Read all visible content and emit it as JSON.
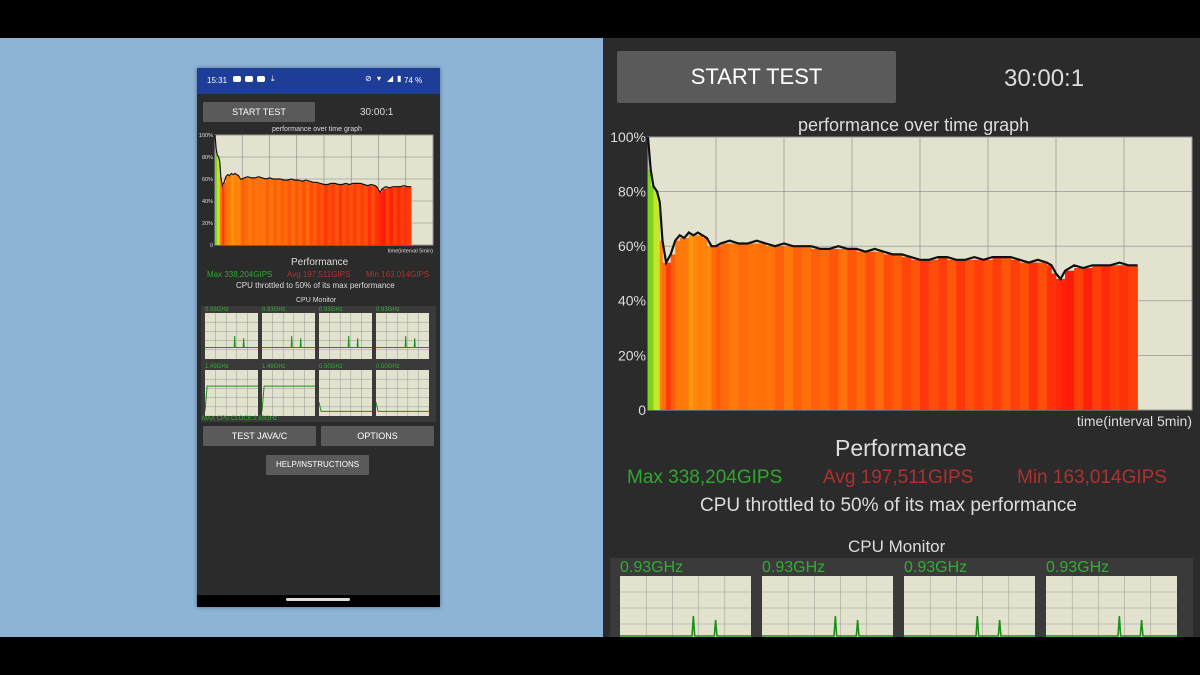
{
  "status_bar": {
    "time": "15:31",
    "battery": "74 %"
  },
  "controls": {
    "start_test": "START TEST",
    "timer": "30:00:1",
    "test_java": "TEST JAVA/C",
    "options": "OPTIONS",
    "help": "HELP/INSTRUCTIONS"
  },
  "performance": {
    "heading": "Performance",
    "max": "Max 338,204GIPS",
    "avg": "Avg 197,511GIPS",
    "min": "Min 163,014GIPS",
    "throttle": "CPU throttled to 50% of its max performance"
  },
  "cpu_monitor": {
    "title": "CPU Monitor",
    "cores": [
      "0.93GHz",
      "0.93GHz",
      "0.93GHz",
      "0.93GHz",
      "1.49GHz",
      "1.49GHz",
      "0.50GHz",
      "0.50GHz"
    ],
    "max_clock": "MAX CPU CLOCK:2.85GHz"
  },
  "colors": {
    "max": "#2ea82e",
    "avg": "#b03030",
    "min": "#b03030",
    "plot_bg": "#e3e2cf",
    "accent_bar": "#1e3d96"
  },
  "chart_data": {
    "type": "area",
    "title": "performance over time graph",
    "xlabel": "time(interval 5min)",
    "ylabel": "",
    "y_ticks": [
      "100%",
      "80%",
      "60%",
      "40%",
      "20%",
      "0"
    ],
    "ylim": [
      0,
      100
    ],
    "xlim": [
      0,
      60
    ],
    "grid": true,
    "x": [
      0,
      0.3,
      0.6,
      1,
      1.3,
      1.6,
      2,
      2.5,
      3,
      3.5,
      4,
      4.5,
      5,
      5.5,
      6,
      6.5,
      7,
      7.5,
      8,
      9,
      10,
      11,
      12,
      13,
      14,
      15,
      16,
      17,
      18,
      19,
      20,
      21,
      22,
      23,
      24,
      25,
      26,
      27,
      28,
      29,
      30,
      31,
      32,
      33,
      34,
      35,
      36,
      37,
      38,
      39,
      40,
      41,
      42,
      43,
      44,
      44.5,
      45,
      45.5,
      46,
      47,
      48,
      49,
      50,
      51,
      52,
      53,
      54,
      55,
      56,
      57,
      58,
      59,
      60
    ],
    "values": [
      100,
      88,
      82,
      80,
      76,
      62,
      54,
      57,
      62,
      64,
      63,
      65,
      64,
      65,
      64,
      63,
      60,
      60,
      61,
      62,
      61,
      61,
      62,
      61,
      60,
      61,
      60,
      60,
      60,
      59,
      59,
      60,
      59,
      59,
      58,
      59,
      58,
      57,
      57,
      56,
      55,
      55,
      56,
      56,
      55,
      55,
      56,
      55,
      56,
      56,
      56,
      55,
      54,
      55,
      54,
      53,
      50,
      48,
      51,
      53,
      52,
      53,
      53,
      53,
      54,
      53,
      53,
      null,
      null,
      null,
      null,
      null,
      null
    ]
  }
}
